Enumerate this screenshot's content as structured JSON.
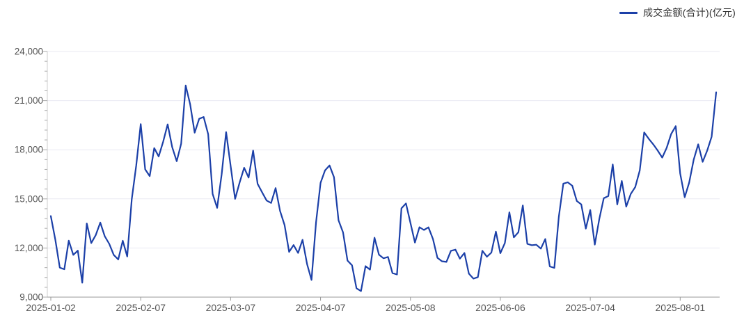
{
  "legend": {
    "label": "成交金额(合计)(亿元)"
  },
  "colors": {
    "line": "#1C40A8",
    "grid": "#E9E9F2",
    "y_axis_line": "#CCCCCC",
    "x_axis_line": "#999999",
    "tick": "#AAAAAA",
    "axis_label": "#555555",
    "legend_text": "#333333",
    "background": "#FFFFFF"
  },
  "chart_data": {
    "type": "line",
    "title": "",
    "xlabel": "",
    "ylabel": "",
    "grid": "horizontal",
    "legend_position": "top-right",
    "y_axis": {
      "min": 9000,
      "max": 24000,
      "major_step": 3000,
      "minor_step": 600,
      "tick_labels": [
        "9,000",
        "12,000",
        "15,000",
        "18,000",
        "21,000",
        "24,000"
      ]
    },
    "x_tick_labels": [
      "2025-01-02",
      "2025-02-07",
      "2025-03-07",
      "2025-04-07",
      "2025-05-08",
      "2025-06-06",
      "2025-07-04",
      "2025-08-01"
    ],
    "x_tick_indices": [
      0,
      20,
      40,
      60,
      80,
      100,
      120,
      140
    ],
    "series": [
      {
        "name": "成交金额(合计)(亿元)",
        "color": "#1C40A8",
        "x": [
          "2025-01-02",
          "2025-01-03",
          "2025-01-06",
          "2025-01-07",
          "2025-01-08",
          "2025-01-09",
          "2025-01-10",
          "2025-01-13",
          "2025-01-14",
          "2025-01-15",
          "2025-01-16",
          "2025-01-17",
          "2025-01-20",
          "2025-01-21",
          "2025-01-22",
          "2025-01-23",
          "2025-01-24",
          "2025-01-27",
          "2025-02-05",
          "2025-02-06",
          "2025-02-07",
          "2025-02-10",
          "2025-02-11",
          "2025-02-12",
          "2025-02-13",
          "2025-02-14",
          "2025-02-17",
          "2025-02-18",
          "2025-02-19",
          "2025-02-20",
          "2025-02-21",
          "2025-02-24",
          "2025-02-25",
          "2025-02-26",
          "2025-02-27",
          "2025-02-28",
          "2025-03-03",
          "2025-03-04",
          "2025-03-05",
          "2025-03-06",
          "2025-03-07",
          "2025-03-10",
          "2025-03-11",
          "2025-03-12",
          "2025-03-13",
          "2025-03-14",
          "2025-03-17",
          "2025-03-18",
          "2025-03-19",
          "2025-03-20",
          "2025-03-21",
          "2025-03-24",
          "2025-03-25",
          "2025-03-26",
          "2025-03-27",
          "2025-03-28",
          "2025-03-31",
          "2025-04-01",
          "2025-04-02",
          "2025-04-03",
          "2025-04-07",
          "2025-04-08",
          "2025-04-09",
          "2025-04-10",
          "2025-04-11",
          "2025-04-14",
          "2025-04-15",
          "2025-04-16",
          "2025-04-17",
          "2025-04-18",
          "2025-04-21",
          "2025-04-22",
          "2025-04-23",
          "2025-04-24",
          "2025-04-25",
          "2025-04-28",
          "2025-04-29",
          "2025-04-30",
          "2025-05-06",
          "2025-05-07",
          "2025-05-08",
          "2025-05-09",
          "2025-05-12",
          "2025-05-13",
          "2025-05-14",
          "2025-05-15",
          "2025-05-16",
          "2025-05-19",
          "2025-05-20",
          "2025-05-21",
          "2025-05-22",
          "2025-05-23",
          "2025-05-26",
          "2025-05-27",
          "2025-05-28",
          "2025-05-29",
          "2025-05-30",
          "2025-06-03",
          "2025-06-04",
          "2025-06-05",
          "2025-06-06",
          "2025-06-09",
          "2025-06-10",
          "2025-06-11",
          "2025-06-12",
          "2025-06-13",
          "2025-06-16",
          "2025-06-17",
          "2025-06-18",
          "2025-06-19",
          "2025-06-20",
          "2025-06-23",
          "2025-06-24",
          "2025-06-25",
          "2025-06-26",
          "2025-06-27",
          "2025-06-30",
          "2025-07-01",
          "2025-07-02",
          "2025-07-03",
          "2025-07-04",
          "2025-07-07",
          "2025-07-08",
          "2025-07-09",
          "2025-07-10",
          "2025-07-11",
          "2025-07-14",
          "2025-07-15",
          "2025-07-16",
          "2025-07-17",
          "2025-07-18",
          "2025-07-21",
          "2025-07-22",
          "2025-07-23",
          "2025-07-24",
          "2025-07-25",
          "2025-07-28",
          "2025-07-29",
          "2025-07-30",
          "2025-07-31",
          "2025-08-01",
          "2025-08-04",
          "2025-08-05",
          "2025-08-06",
          "2025-08-07",
          "2025-08-08",
          "2025-08-11",
          "2025-08-12",
          "2025-08-13"
        ],
        "values": [
          13950,
          12500,
          10800,
          10700,
          12450,
          11580,
          11840,
          9880,
          13500,
          12300,
          12790,
          13550,
          12720,
          12250,
          11580,
          11300,
          12440,
          11480,
          14970,
          17030,
          19570,
          16800,
          16390,
          18100,
          17590,
          18500,
          19550,
          18160,
          17300,
          18370,
          21920,
          20780,
          19040,
          19890,
          20000,
          18950,
          15300,
          14450,
          16500,
          19080,
          17000,
          15000,
          16000,
          16900,
          16300,
          17950,
          15920,
          15400,
          14900,
          14750,
          15660,
          14260,
          13400,
          11760,
          12180,
          11700,
          12500,
          11020,
          10050,
          13570,
          15980,
          16740,
          17040,
          16320,
          13690,
          12950,
          11230,
          10940,
          9540,
          9370,
          10890,
          10680,
          12630,
          11590,
          11370,
          11450,
          10470,
          10380,
          14420,
          14720,
          13520,
          12330,
          13270,
          13100,
          13260,
          12550,
          11400,
          11190,
          11150,
          11830,
          11900,
          11350,
          11700,
          10430,
          10130,
          10220,
          11830,
          11470,
          11720,
          13000,
          11680,
          12300,
          14180,
          12650,
          12960,
          14600,
          12250,
          12170,
          12200,
          11960,
          12550,
          10870,
          10790,
          13900,
          15930,
          16010,
          15800,
          14870,
          14660,
          13180,
          14320,
          12210,
          13770,
          15040,
          15170,
          17100,
          14660,
          16090,
          14530,
          15300,
          15720,
          16730,
          19060,
          18670,
          18330,
          17950,
          17520,
          18120,
          18970,
          19440,
          16550,
          15100,
          15990,
          17390,
          18330,
          17260,
          17950,
          18800,
          21510
        ]
      }
    ]
  }
}
